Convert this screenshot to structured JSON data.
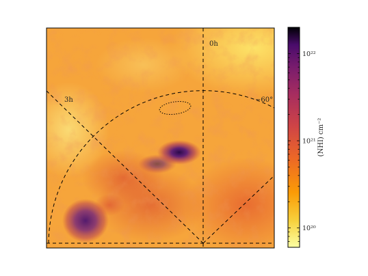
{
  "chart_data": {
    "type": "heatmap",
    "title": "",
    "colorbar": {
      "label": "(NHI) cm⁻²",
      "scale": "log",
      "range": [
        6e+19,
        2e+22
      ],
      "colormap": "inferno_r",
      "ticks": [
        {
          "value": 1e+22,
          "label": "10²²"
        },
        {
          "value": 1e+21,
          "label": "10²¹"
        },
        {
          "value": 1e+20,
          "label": "10²⁰"
        }
      ]
    },
    "annotations": [
      {
        "text": "0h"
      },
      {
        "text": "3h"
      },
      {
        "text": "−60°"
      }
    ],
    "features": [
      "dotted ellipse (upper centre)",
      "dense dark cloud (centre)",
      "dense dark cloud (lower left)"
    ]
  }
}
